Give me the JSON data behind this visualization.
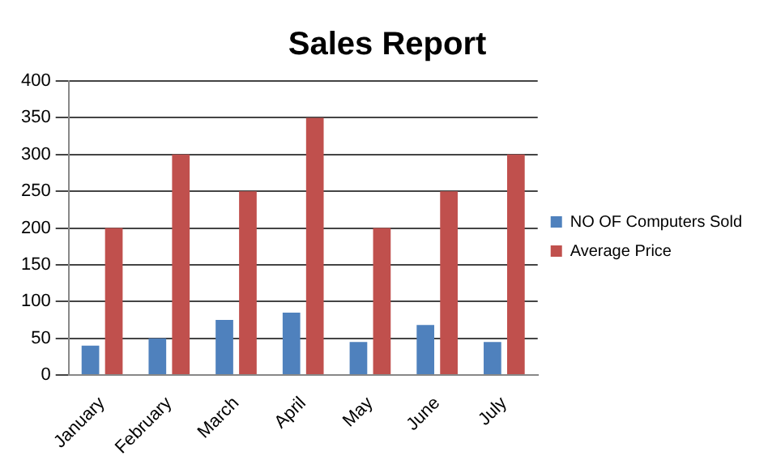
{
  "chart_data": {
    "type": "bar",
    "title": "Sales Report",
    "categories": [
      "January",
      "February",
      "March",
      "April",
      "May",
      "June",
      "July"
    ],
    "series": [
      {
        "name": "NO OF Computers Sold",
        "color": "#4f81bd",
        "values": [
          40,
          50,
          75,
          85,
          45,
          68,
          45
        ]
      },
      {
        "name": "Average Price",
        "color": "#c0504d",
        "values": [
          200,
          300,
          250,
          350,
          200,
          250,
          300
        ]
      }
    ],
    "ylim": [
      0,
      400
    ],
    "yticks": [
      0,
      50,
      100,
      150,
      200,
      250,
      300,
      350,
      400
    ],
    "grid": "y",
    "legend": "right"
  }
}
